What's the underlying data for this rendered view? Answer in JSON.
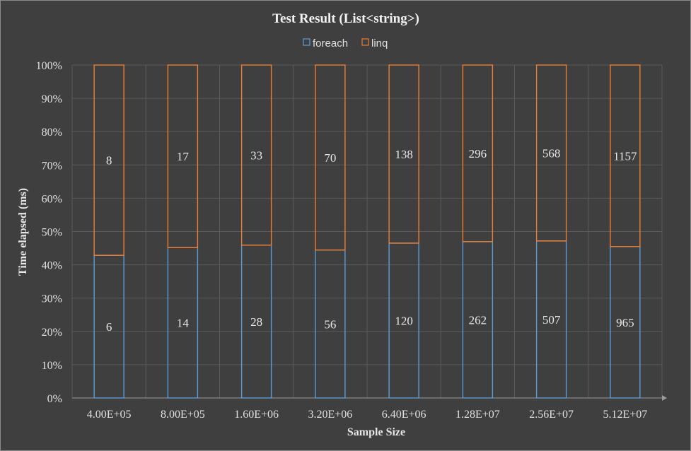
{
  "chart_data": {
    "type": "bar",
    "stacked": true,
    "normalized": true,
    "title": "Test Result (List<string>)",
    "xlabel": "Sample Size",
    "ylabel": "Time elapsed (ms)",
    "ylim": [
      0,
      100
    ],
    "yticks": [
      "0%",
      "10%",
      "20%",
      "30%",
      "40%",
      "50%",
      "60%",
      "70%",
      "80%",
      "90%",
      "100%"
    ],
    "categories": [
      "4.00E+05",
      "8.00E+05",
      "1.60E+06",
      "3.20E+06",
      "6.40E+06",
      "1.28E+07",
      "2.56E+07",
      "5.12E+07"
    ],
    "series": [
      {
        "name": "foreach",
        "values": [
          6,
          14,
          28,
          56,
          120,
          262,
          507,
          965
        ],
        "color": "#5b9bd5"
      },
      {
        "name": "linq",
        "values": [
          8,
          17,
          33,
          70,
          138,
          296,
          568,
          1157
        ],
        "color": "#ed7d31"
      }
    ],
    "grid": true,
    "legend_position": "top"
  }
}
